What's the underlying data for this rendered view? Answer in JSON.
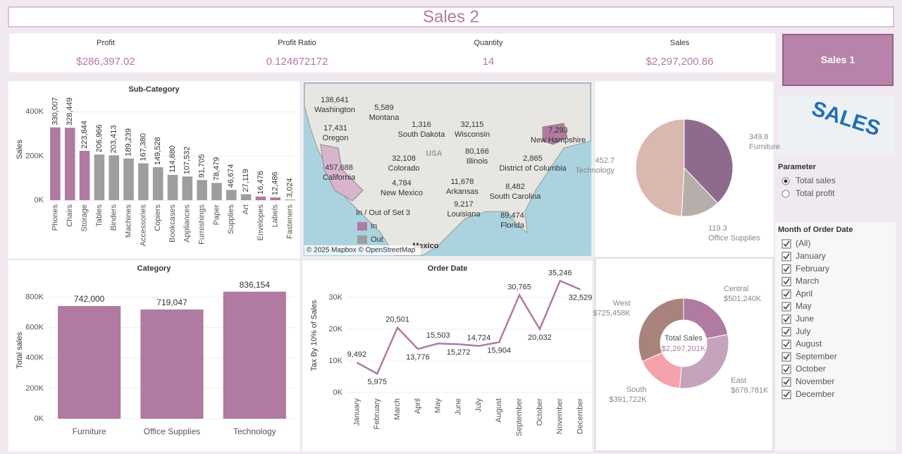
{
  "header": {
    "title": "Sales 2"
  },
  "kpis": [
    {
      "label": "Profit",
      "value": "$286,397.02"
    },
    {
      "label": "Profit Ratio",
      "value": "0.124672172"
    },
    {
      "label": "Quantity",
      "value": "14"
    },
    {
      "label": "Sales",
      "value": "$2,297,200.86"
    }
  ],
  "button": "Sales 1",
  "image_text": "SALES",
  "parameter": {
    "title": "Parameter",
    "options": [
      "Total sales",
      "Total profit"
    ],
    "selected": 0
  },
  "filter": {
    "title": "Month of Order Date",
    "items": [
      "(All)",
      "January",
      "February",
      "March",
      "April",
      "May",
      "June",
      "July",
      "August",
      "September",
      "October",
      "November",
      "December"
    ]
  },
  "map": {
    "labels": [
      {
        "value": "138,641",
        "name": "Washington"
      },
      {
        "value": "17,431",
        "name": "Oregon"
      },
      {
        "value": "5,589",
        "name": "Montana"
      },
      {
        "value": "1,316",
        "name": "South Dakota"
      },
      {
        "value": "32,115",
        "name": "Wisconsin"
      },
      {
        "value": "457,688",
        "name": "California"
      },
      {
        "value": "32,108",
        "name": "Colorado"
      },
      {
        "value": "4,784",
        "name": "New Mexico"
      },
      {
        "value": "80,166",
        "name": "Illinois"
      },
      {
        "value": "2,865",
        "name": "District of Columbia"
      },
      {
        "value": "7,293",
        "name": "New Hampshire"
      },
      {
        "value": "11,678",
        "name": "Arkansas"
      },
      {
        "value": "9,217",
        "name": "Louisiana"
      },
      {
        "value": "8,482",
        "name": "South Carolina"
      },
      {
        "value": "89,474",
        "name": "Florida"
      }
    ],
    "country_labels": [
      "USA",
      "Mexico"
    ],
    "legend_title": "In / Out of Set 3",
    "legend": [
      {
        "name": "In",
        "color": "#b07aa1"
      },
      {
        "name": "Out",
        "color": "#9e9e9e"
      }
    ],
    "attribution": "© 2025 Mapbox © OpenStreetMap"
  },
  "chart_data": [
    {
      "type": "bar",
      "title": "Sub-Category",
      "y_label": "Sales",
      "categories": [
        "Phones",
        "Chairs",
        "Storage",
        "Tables",
        "Binders",
        "Machines",
        "Accessories",
        "Copiers",
        "Bookcases",
        "Appliances",
        "Furnishings",
        "Paper",
        "Supplies",
        "Art",
        "Envelopes",
        "Labels",
        "Fasteners"
      ],
      "values": [
        330007,
        328449,
        223844,
        206966,
        203413,
        189239,
        167380,
        149528,
        114880,
        107532,
        91705,
        78479,
        46674,
        27119,
        16476,
        12486,
        3024
      ],
      "value_labels": [
        "330,007",
        "328,449",
        "223,844",
        "206,966",
        "203,413",
        "189,239",
        "167,380",
        "149,528",
        "114,880",
        "107,532",
        "91,705",
        "78,479",
        "46,674",
        "27,119",
        "16,476",
        "12,486",
        "3,024"
      ],
      "colors": [
        "#b07aa1",
        "#b07aa1",
        "#b07aa1",
        "#9e9e9e",
        "#9e9e9e",
        "#9e9e9e",
        "#9e9e9e",
        "#9e9e9e",
        "#9e9e9e",
        "#9e9e9e",
        "#9e9e9e",
        "#9e9e9e",
        "#9e9e9e",
        "#9e9e9e",
        "#b07aa1",
        "#b07aa1",
        "#9e9e9e"
      ],
      "ylim": [
        0,
        460000
      ],
      "yticks": [
        {
          "value": 0,
          "label": "0K"
        },
        {
          "value": 200000,
          "label": "200K"
        },
        {
          "value": 400000,
          "label": "400K"
        }
      ],
      "grid": true
    },
    {
      "type": "bar",
      "title": "Category",
      "y_label": "Total sales",
      "categories": [
        "Furniture",
        "Office Supplies",
        "Technology"
      ],
      "values": [
        742000,
        719047,
        836154
      ],
      "value_labels": [
        "742,000",
        "719,047",
        "836,154"
      ],
      "color": "#b07aa1",
      "ylim": [
        0,
        900000
      ],
      "yticks": [
        {
          "value": 0,
          "label": "0K"
        },
        {
          "value": 200000,
          "label": "200K"
        },
        {
          "value": 400000,
          "label": "400K"
        },
        {
          "value": 600000,
          "label": "600K"
        },
        {
          "value": 800000,
          "label": "800K"
        }
      ],
      "grid": true
    },
    {
      "type": "line",
      "title": "Order Date",
      "y_label": "Tax By 10% of Sales",
      "categories": [
        "January",
        "February",
        "March",
        "April",
        "May",
        "June",
        "July",
        "August",
        "September",
        "October",
        "November",
        "December"
      ],
      "values": [
        9492,
        5975,
        20501,
        13776,
        15503,
        15272,
        14724,
        15904,
        30765,
        20032,
        35246,
        32529
      ],
      "value_labels": [
        "9,492",
        "5,975",
        "20,501",
        "13,776",
        "15,503",
        "15,272",
        "14,724",
        "15,904",
        "30,765",
        "20,032",
        "35,246",
        "32,529"
      ],
      "color": "#b07aa1",
      "ylim": [
        0,
        36000
      ],
      "yticks": [
        {
          "value": 0,
          "label": "0K"
        },
        {
          "value": 10000,
          "label": "10K"
        },
        {
          "value": 20000,
          "label": "20K"
        },
        {
          "value": 30000,
          "label": "30K"
        }
      ],
      "grid": true
    },
    {
      "type": "pie",
      "categories": [
        "Furniture",
        "Office Supplies",
        "Technology"
      ],
      "values": [
        349.8,
        119.3,
        452.7
      ],
      "colors": [
        "#8e6b8d",
        "#b5aeaa",
        "#d9b8b0"
      ]
    },
    {
      "type": "donut",
      "center_label": "Total Sales",
      "center_value": "$2,297,201K",
      "categories": [
        "Central",
        "East",
        "South",
        "West"
      ],
      "values": [
        501240,
        678781,
        391722,
        725458
      ],
      "value_labels": [
        "$501,240K",
        "$678,781K",
        "$391,722K",
        "$725,458K"
      ],
      "colors": [
        "#b07aa1",
        "#c4a3bd",
        "#f5a3ab",
        "#a8837c"
      ]
    }
  ]
}
